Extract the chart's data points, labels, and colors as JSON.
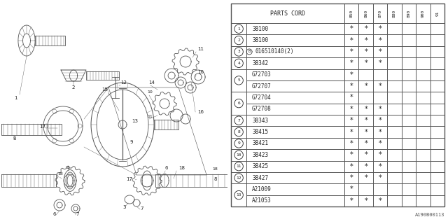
{
  "fig_width": 6.4,
  "fig_height": 3.2,
  "bg_color": "#ffffff",
  "line_color": "#555555",
  "text_color": "#222222",
  "display_rows": [
    {
      "num": "1",
      "parts": [
        "38100"
      ],
      "marks": [
        [
          1,
          1,
          1,
          0,
          0,
          0,
          0
        ]
      ]
    },
    {
      "num": "2",
      "parts": [
        "38100"
      ],
      "marks": [
        [
          1,
          1,
          1,
          0,
          0,
          0,
          0
        ]
      ]
    },
    {
      "num": "3",
      "parts": [
        "B016510140(2)"
      ],
      "marks": [
        [
          1,
          1,
          1,
          0,
          0,
          0,
          0
        ]
      ]
    },
    {
      "num": "4",
      "parts": [
        "38342"
      ],
      "marks": [
        [
          1,
          1,
          1,
          0,
          0,
          0,
          0
        ]
      ]
    },
    {
      "num": "5",
      "parts": [
        "G72703",
        "G72707"
      ],
      "marks": [
        [
          1,
          0,
          0,
          0,
          0,
          0,
          0
        ],
        [
          1,
          1,
          1,
          0,
          0,
          0,
          0
        ]
      ]
    },
    {
      "num": "6",
      "parts": [
        "G72704",
        "G72708"
      ],
      "marks": [
        [
          1,
          0,
          0,
          0,
          0,
          0,
          0
        ],
        [
          1,
          1,
          1,
          0,
          0,
          0,
          0
        ]
      ]
    },
    {
      "num": "7",
      "parts": [
        "38343"
      ],
      "marks": [
        [
          1,
          1,
          1,
          0,
          0,
          0,
          0
        ]
      ]
    },
    {
      "num": "8",
      "parts": [
        "38415"
      ],
      "marks": [
        [
          1,
          1,
          1,
          0,
          0,
          0,
          0
        ]
      ]
    },
    {
      "num": "9",
      "parts": [
        "38421"
      ],
      "marks": [
        [
          1,
          1,
          1,
          0,
          0,
          0,
          0
        ]
      ]
    },
    {
      "num": "10",
      "parts": [
        "38423"
      ],
      "marks": [
        [
          1,
          1,
          1,
          0,
          0,
          0,
          0
        ]
      ]
    },
    {
      "num": "11",
      "parts": [
        "38425"
      ],
      "marks": [
        [
          1,
          1,
          1,
          0,
          0,
          0,
          0
        ]
      ]
    },
    {
      "num": "12",
      "parts": [
        "38427"
      ],
      "marks": [
        [
          1,
          1,
          1,
          0,
          0,
          0,
          0
        ]
      ]
    },
    {
      "num": "13",
      "parts": [
        "A21009",
        "A21053"
      ],
      "marks": [
        [
          1,
          0,
          0,
          0,
          0,
          0,
          0
        ],
        [
          1,
          1,
          1,
          0,
          0,
          0,
          0
        ]
      ]
    }
  ],
  "year_cols": [
    "85\n0",
    "86\n0",
    "87\n0",
    "88\n0",
    "89\n0",
    "90\n0",
    "91"
  ],
  "year_labels": [
    "850",
    "860",
    "870",
    "880",
    "890",
    "900",
    "91"
  ],
  "footnote": "A190B00113"
}
